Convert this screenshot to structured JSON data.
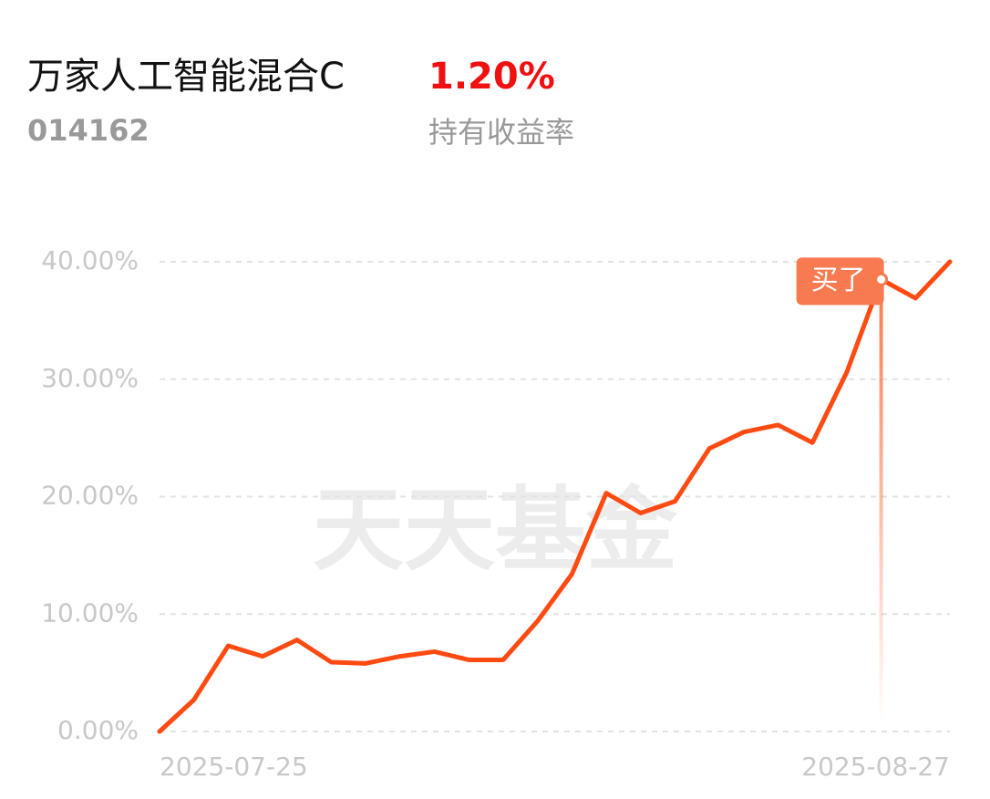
{
  "header": {
    "name": "万家人工智能混合C",
    "code": "014162",
    "return": "1.20%",
    "return_label": "持有收益率"
  },
  "chart_data": {
    "type": "line",
    "watermark": "天天基金",
    "categories": [
      "2025-07-25",
      null,
      null,
      null,
      null,
      null,
      null,
      null,
      null,
      null,
      null,
      null,
      null,
      null,
      null,
      null,
      null,
      null,
      null,
      null,
      null,
      null,
      null,
      "2025-08-27"
    ],
    "series": [
      {
        "name": "持有收益率",
        "color": "#ff4a12",
        "values": [
          0,
          2.7,
          7.3,
          6.4,
          7.8,
          5.9,
          5.8,
          6.4,
          6.8,
          6.1,
          6.1,
          9.4,
          13.4,
          20.3,
          18.6,
          19.6,
          24.1,
          25.5,
          26.1,
          24.6,
          30.6,
          38.5,
          36.9,
          40.0
        ]
      }
    ],
    "annotations": [
      {
        "text": "买了",
        "index": 21
      }
    ],
    "ylim": [
      0,
      40
    ],
    "yticks": [
      {
        "value": 0,
        "label": "0.00%"
      },
      {
        "value": 10,
        "label": "10.00%"
      },
      {
        "value": 20,
        "label": "20.00%"
      },
      {
        "value": 30,
        "label": "30.00%"
      },
      {
        "value": 40,
        "label": "40.00%"
      }
    ],
    "grid": true
  }
}
